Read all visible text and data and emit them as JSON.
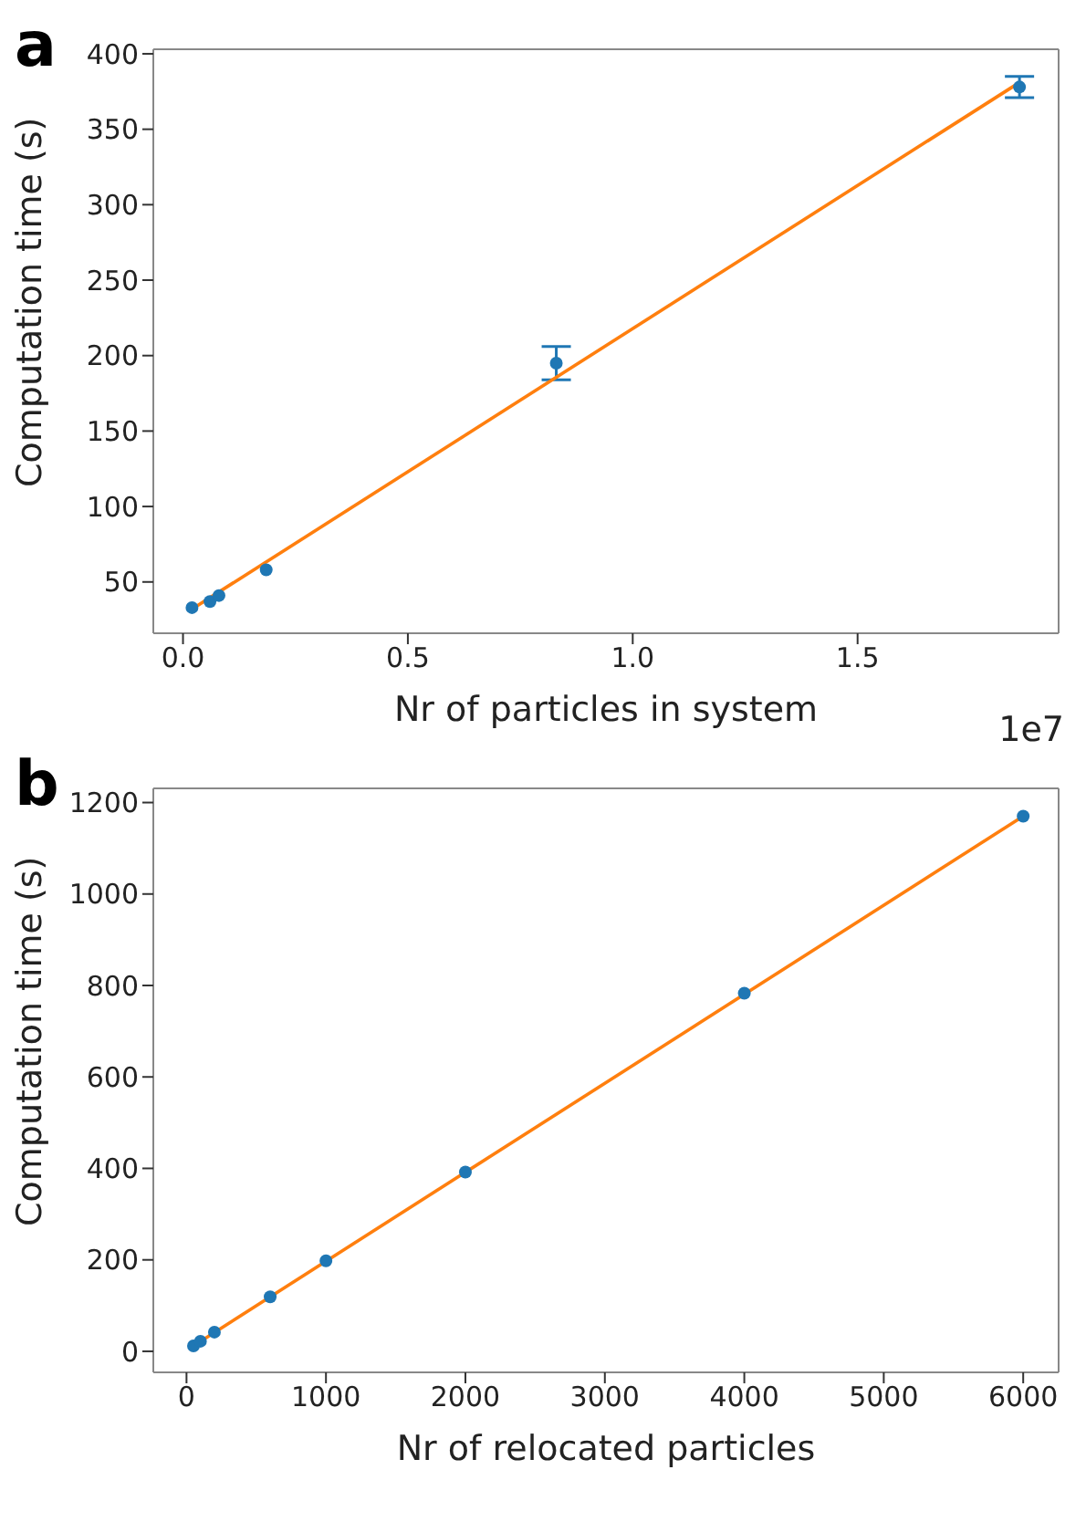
{
  "chart_data": [
    {
      "type": "scatter",
      "annotations": [
        "a",
        "1e7"
      ],
      "xlabel": "Nr of particles in system",
      "ylabel": "Computation time (s)",
      "xlim": [
        -0.066,
        1.947
      ],
      "xticks": [
        {
          "value": 0,
          "label": "0.0"
        },
        0.5,
        {
          "value": 1,
          "label": "1.0"
        },
        1.5
      ],
      "ylim": [
        16,
        403
      ],
      "yticks": [
        50,
        100,
        150,
        200,
        250,
        300,
        350,
        400
      ],
      "grid": false,
      "legend": false,
      "series": [
        {
          "color": "#1f77b4",
          "marker": "circle",
          "x": [
            0.02,
            0.06,
            0.08,
            0.185,
            0.83,
            1.86
          ],
          "values": [
            33,
            37,
            41,
            58,
            195,
            378
          ],
          "errors": [
            null,
            null,
            null,
            null,
            [
              184,
              206
            ],
            [
              371,
              385
            ]
          ]
        },
        {
          "type": "line",
          "color": "#ff7f0e",
          "marker": "none",
          "x": [
            0.02,
            1.86
          ],
          "values": [
            32,
            381
          ]
        }
      ]
    },
    {
      "type": "scatter",
      "annotations": [
        "b"
      ],
      "xlabel": "Nr of relocated particles",
      "ylabel": "Computation time (s)",
      "xlim": [
        -238,
        6254
      ],
      "xticks": [
        0,
        1000,
        2000,
        3000,
        4000,
        5000,
        6000
      ],
      "ylim": [
        -46,
        1231
      ],
      "yticks": [
        0,
        200,
        400,
        600,
        800,
        1000,
        1200
      ],
      "grid": false,
      "legend": false,
      "series": [
        {
          "color": "#1f77b4",
          "marker": "circle",
          "x": [
            50,
            100,
            200,
            600,
            1000,
            2000,
            4000,
            6000
          ],
          "values": [
            12,
            22,
            42,
            119,
            198,
            392,
            783,
            1170
          ]
        },
        {
          "type": "line",
          "color": "#ff7f0e",
          "marker": "none",
          "x": [
            50,
            6000
          ],
          "values": [
            12,
            1170
          ]
        }
      ]
    }
  ]
}
